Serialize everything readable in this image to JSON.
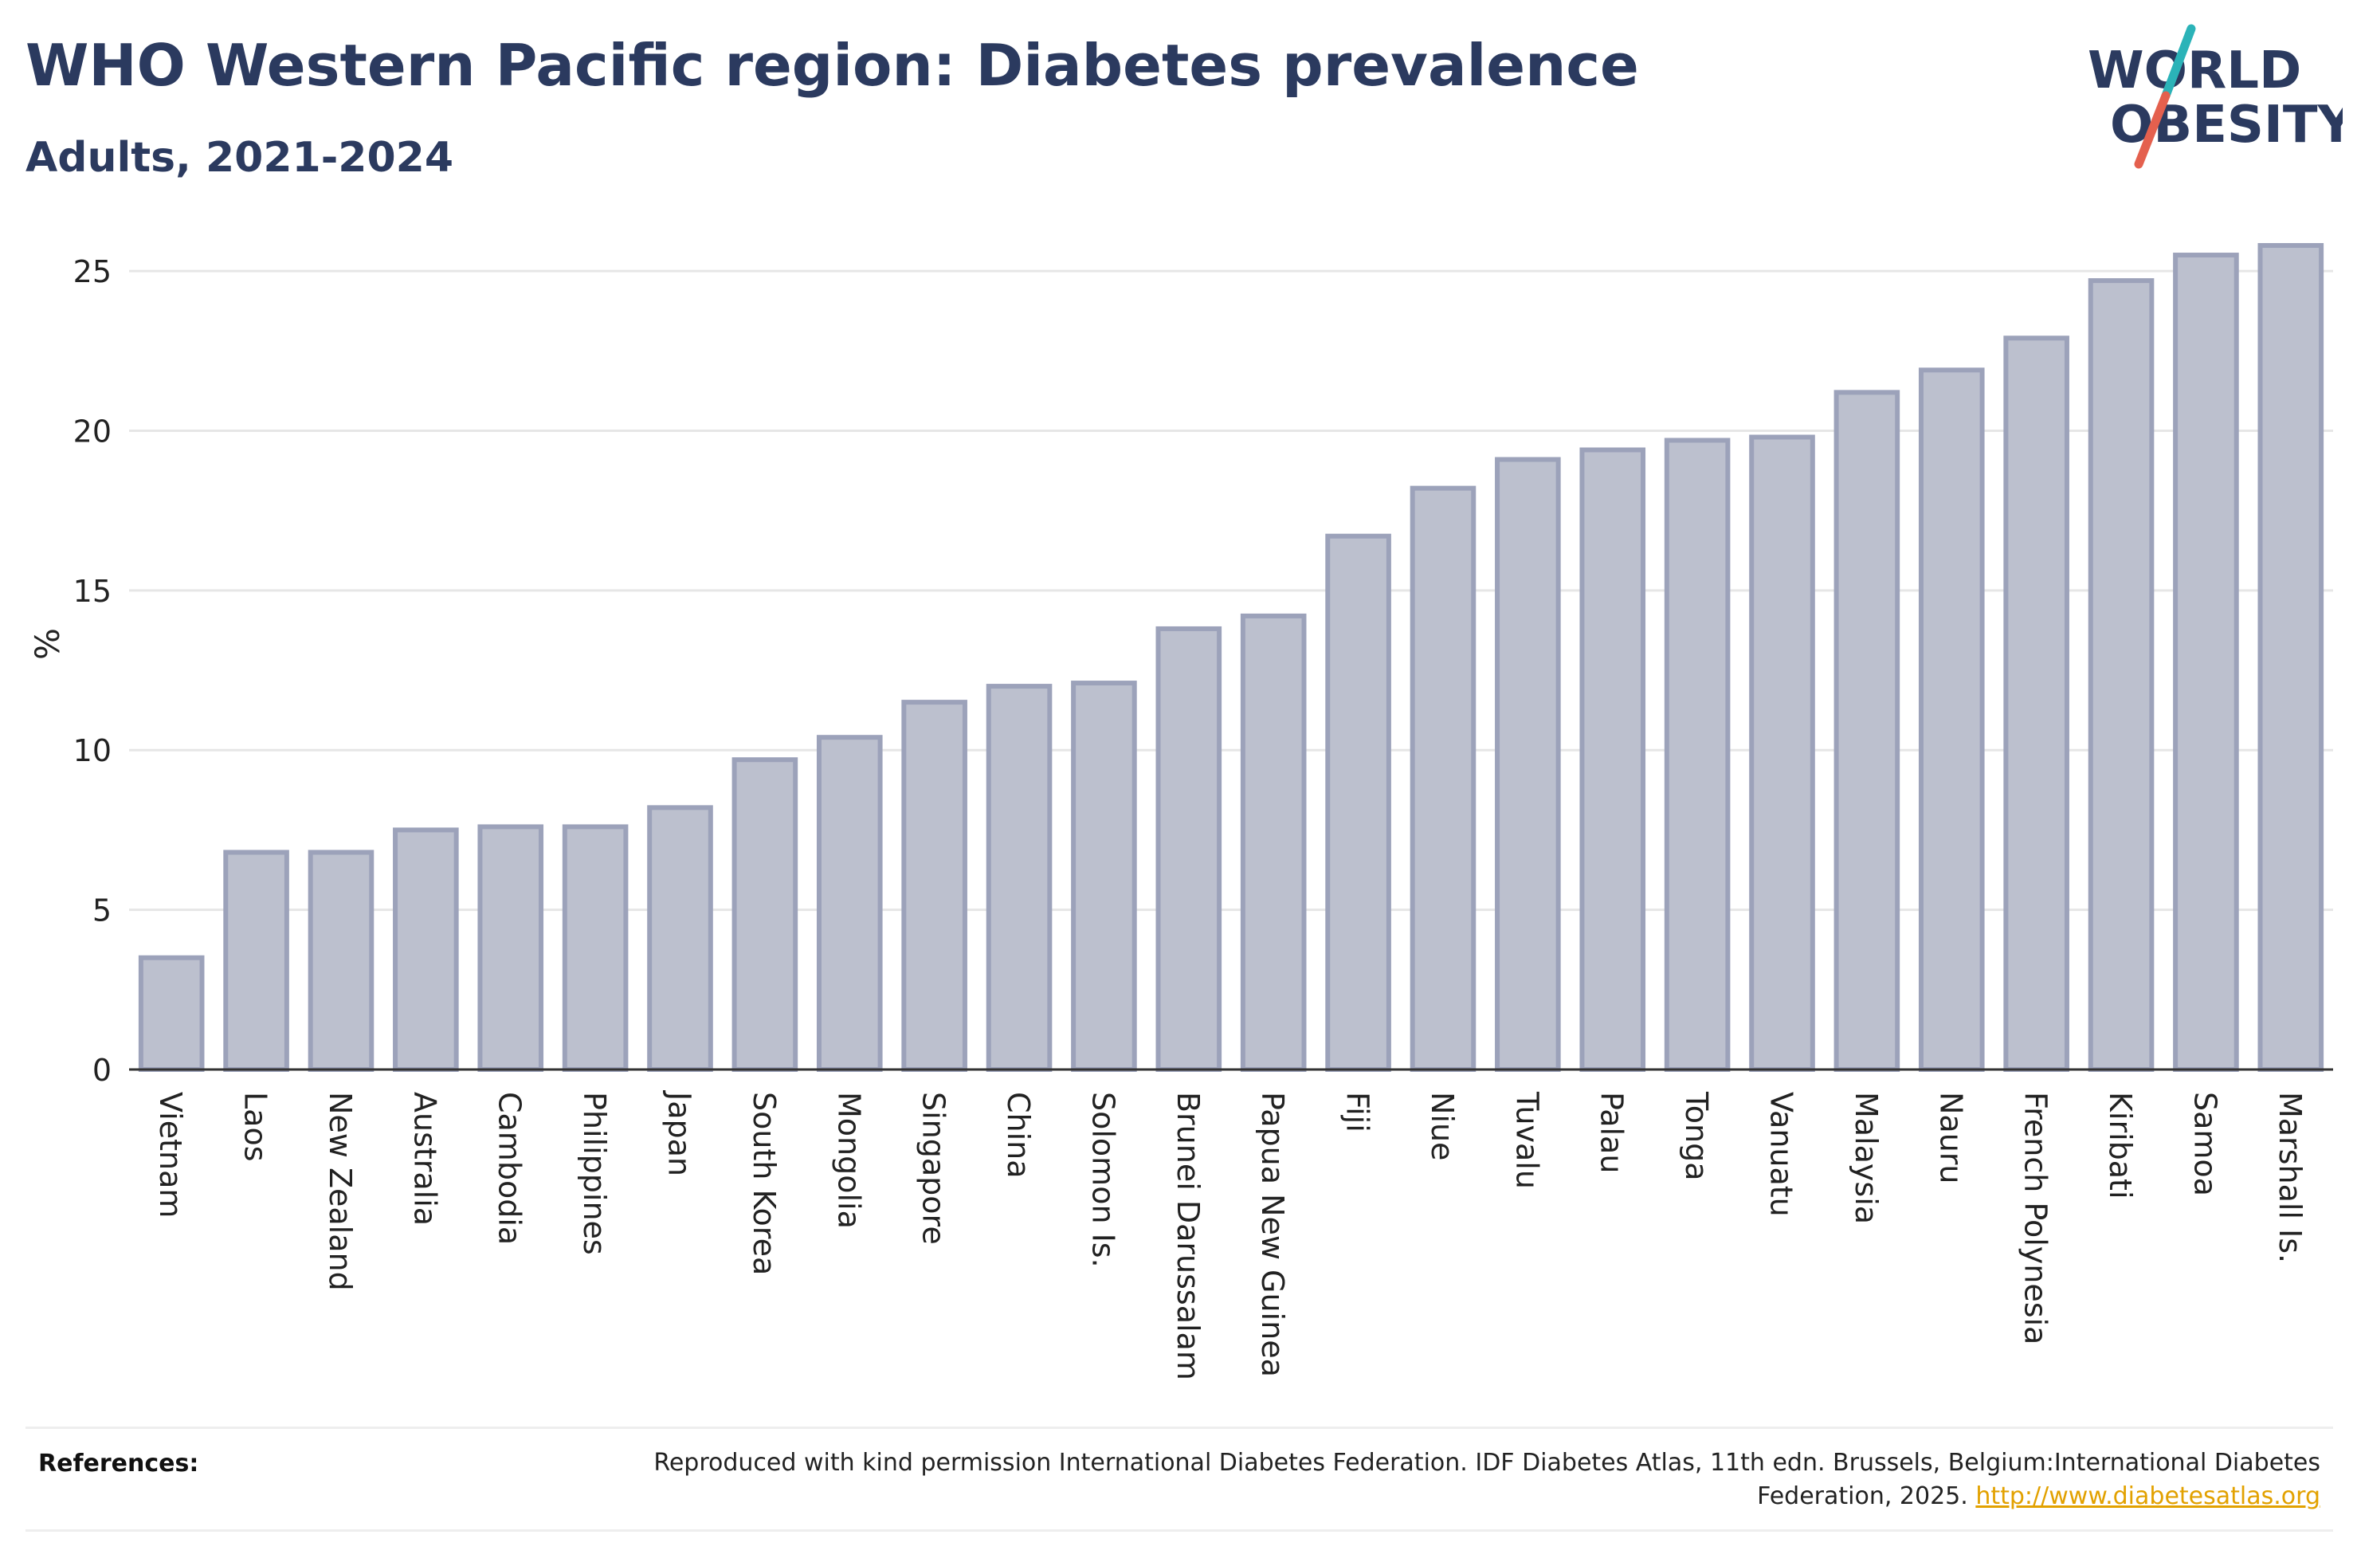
{
  "header": {
    "title": "WHO Western Pacific region: Diabetes prevalence",
    "subtitle": "Adults, 2021-2024"
  },
  "logo": {
    "line1": "WORLD",
    "line2": "OBESITY",
    "colors": {
      "text": "#2b3a5f",
      "slash_top": "#2bb3b8",
      "slash_bottom": "#e4604e"
    }
  },
  "chart_data": {
    "type": "bar",
    "title": "WHO Western Pacific region: Diabetes prevalence",
    "subtitle": "Adults, 2021-2024",
    "ylabel": "%",
    "xlabel": "",
    "ylim": [
      0,
      26
    ],
    "yticks": [
      0,
      5,
      10,
      15,
      20,
      25
    ],
    "grid": true,
    "legend": "none",
    "bar_fill": "#bcc0ce",
    "bar_stroke": "#9ca2ba",
    "categories": [
      "Vietnam",
      "Laos",
      "New Zealand",
      "Australia",
      "Cambodia",
      "Philippines",
      "Japan",
      "South Korea",
      "Mongolia",
      "Singapore",
      "China",
      "Solomon Is.",
      "Brunei Darussalam",
      "Papua New Guinea",
      "Fiji",
      "Niue",
      "Tuvalu",
      "Palau",
      "Tonga",
      "Vanuatu",
      "Malaysia",
      "Nauru",
      "French Polynesia",
      "Kiribati",
      "Samoa",
      "Marshall Is."
    ],
    "values": [
      3.5,
      6.8,
      6.8,
      7.5,
      7.6,
      7.6,
      8.2,
      9.7,
      10.4,
      11.5,
      12.0,
      12.1,
      13.8,
      14.2,
      16.7,
      18.2,
      19.1,
      19.4,
      19.7,
      19.8,
      21.2,
      21.9,
      22.9,
      24.7,
      25.5,
      25.8
    ]
  },
  "references": {
    "label": "References:",
    "text": "Reproduced with kind permission International Diabetes Federation. IDF Diabetes Atlas, 11th edn. Brussels, Belgium:International Diabetes Federation, 2025. ",
    "link": "http://www.diabetesatlas.org"
  }
}
